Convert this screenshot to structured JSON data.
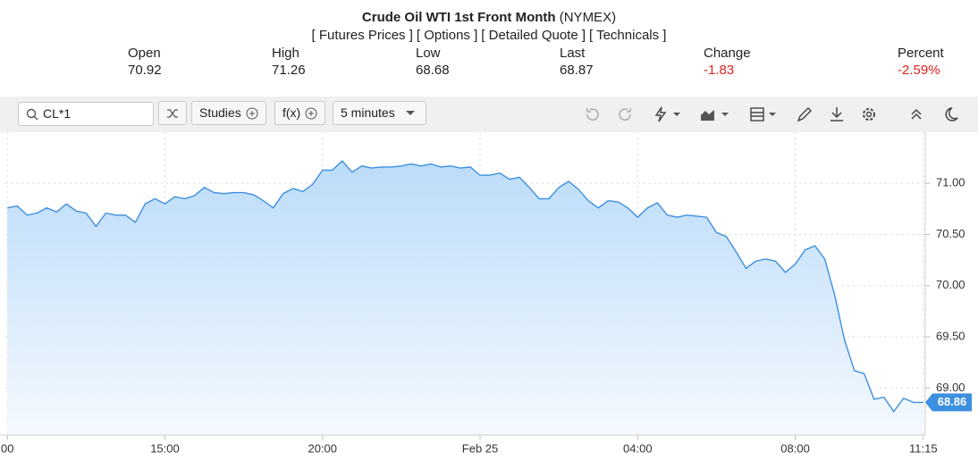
{
  "header": {
    "title": "Crude Oil WTI 1st Front Month",
    "exchange": "(NYMEX)",
    "links": [
      "[ Futures Prices ]",
      "[ Options ]",
      "[ Detailed Quote ]",
      "[ Technicals ]"
    ]
  },
  "quote": [
    {
      "label": "Open",
      "value": "70.92"
    },
    {
      "label": "High",
      "value": "71.26"
    },
    {
      "label": "Low",
      "value": "68.68"
    },
    {
      "label": "Last",
      "value": "68.87"
    },
    {
      "label": "Change",
      "value": "-1.83"
    },
    {
      "label": "Percent",
      "value": "-2.59%"
    }
  ],
  "toolbar": {
    "symbol": "CL*1",
    "studies": "Studies",
    "functions": "f(x)",
    "interval": "5 minutes"
  },
  "chart_data": {
    "type": "line",
    "color": "#3d8fdf",
    "grid": true,
    "x": [
      -12,
      -11.75,
      -11.5,
      -11.25,
      -11,
      -10.75,
      -10.5,
      -10.25,
      -10,
      -9.75,
      -9.5,
      -9.25,
      -9,
      -8.75,
      -8.5,
      -8.25,
      -8,
      -7.75,
      -7.5,
      -7.25,
      -7,
      -6.75,
      -6.5,
      -6.25,
      -6,
      -5.75,
      -5.5,
      -5.25,
      -5,
      -4.75,
      -4.5,
      -4.25,
      -4,
      -3.75,
      -3.5,
      -3.25,
      -3,
      -2.75,
      -2.5,
      -2.25,
      -2,
      -1.75,
      -1.5,
      -1.25,
      -1,
      -0.75,
      -0.5,
      -0.25,
      0,
      0.25,
      0.5,
      0.75,
      1,
      1.25,
      1.5,
      1.75,
      2,
      2.25,
      2.5,
      2.75,
      3,
      3.25,
      3.5,
      3.75,
      4,
      4.25,
      4.5,
      4.75,
      5,
      5.25,
      5.5,
      5.75,
      6,
      6.25,
      6.5,
      6.75,
      7,
      7.25,
      7.5,
      7.75,
      8,
      8.25,
      8.5,
      8.75,
      9,
      9.25,
      9.5,
      9.75,
      10,
      10.25,
      10.5,
      10.75,
      11,
      11.25
    ],
    "values": [
      70.76,
      70.78,
      70.69,
      70.71,
      70.76,
      70.72,
      70.8,
      70.73,
      70.71,
      70.58,
      70.71,
      70.69,
      70.69,
      70.62,
      70.8,
      70.85,
      70.8,
      70.87,
      70.85,
      70.88,
      70.96,
      70.91,
      70.9,
      70.91,
      70.91,
      70.89,
      70.83,
      70.76,
      70.9,
      70.95,
      70.92,
      70.99,
      71.13,
      71.13,
      71.22,
      71.11,
      71.17,
      71.15,
      71.16,
      71.16,
      71.17,
      71.19,
      71.17,
      71.19,
      71.16,
      71.17,
      71.15,
      71.16,
      71.08,
      71.08,
      71.1,
      71.04,
      71.06,
      70.96,
      70.85,
      70.85,
      70.96,
      71.02,
      70.94,
      70.83,
      70.76,
      70.83,
      70.82,
      70.76,
      70.67,
      70.76,
      70.81,
      70.69,
      70.67,
      70.69,
      70.68,
      70.67,
      70.52,
      70.48,
      70.33,
      70.17,
      70.24,
      70.26,
      70.24,
      70.13,
      70.21,
      70.35,
      70.39,
      70.26,
      69.91,
      69.47,
      69.17,
      69.14,
      68.89,
      68.91,
      68.77,
      68.9,
      68.86,
      68.86
    ],
    "xlim": [
      -12.05,
      11.3
    ],
    "xticks": [
      {
        "value": -12,
        "label": "00"
      },
      {
        "value": -8,
        "label": "15:00"
      },
      {
        "value": -4,
        "label": "20:00"
      },
      {
        "value": 0,
        "label": "Feb 25"
      },
      {
        "value": 4,
        "label": "04:00"
      },
      {
        "value": 8,
        "label": "08:00"
      },
      {
        "value": 11.25,
        "label": "11:15"
      }
    ],
    "ylim": [
      68.54,
      71.5
    ],
    "yticks": [
      {
        "value": 69,
        "label": "69.00"
      },
      {
        "value": 69.5,
        "label": "69.50"
      },
      {
        "value": 70,
        "label": "70.00"
      },
      {
        "value": 70.5,
        "label": "70.50"
      },
      {
        "value": 71,
        "label": "71.00"
      }
    ]
  }
}
